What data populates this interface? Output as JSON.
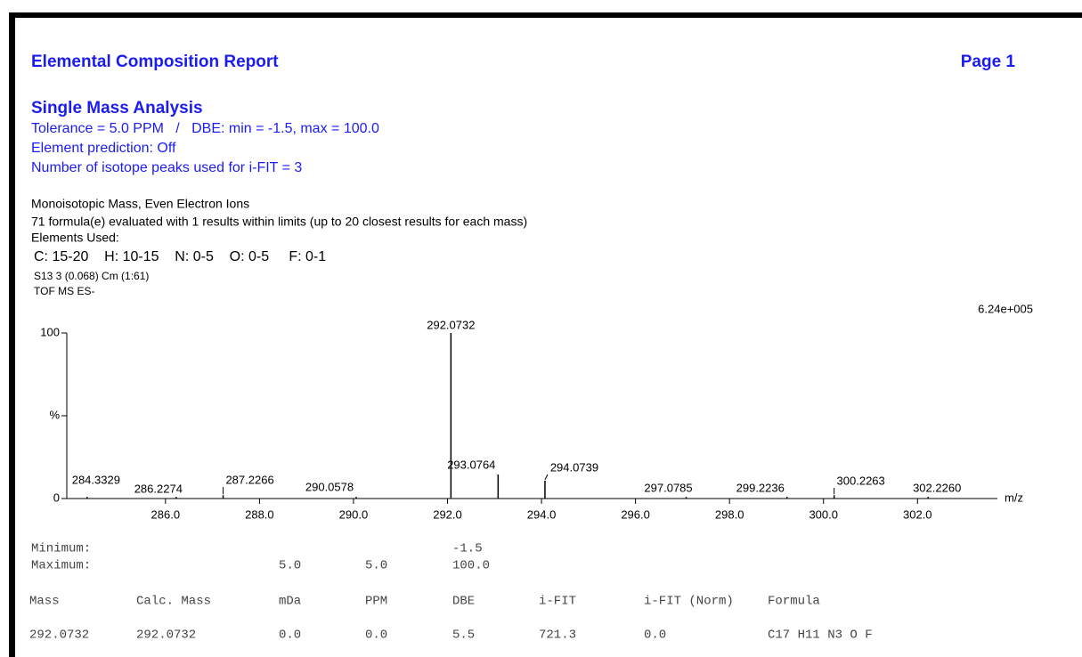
{
  "header": {
    "title": "Elemental Composition Report",
    "page": "Page 1"
  },
  "analysis": {
    "title": "Single Mass Analysis",
    "lines": [
      "Tolerance = 5.0 PPM   /   DBE: min = -1.5, max = 100.0",
      "Element prediction: Off",
      "Number of isotope peaks used for i-FIT = 3"
    ]
  },
  "info": {
    "lines": [
      "Monoisotopic Mass, Even Electron Ions",
      "71 formula(e) evaluated with 1 results within limits (up to 20 closest results for each mass)",
      "Elements Used:"
    ],
    "elements": "C: 15-20    H: 10-15    N: 0-5    O: 0-5     F: 0-1",
    "sample": "S13 3 (0.068) Cm (1:61)",
    "mode": "TOF MS ES-"
  },
  "chart_data": {
    "type": "stem",
    "annotation": "6.24e+005",
    "x_label": "m/z",
    "x": [
      284.3329,
      286.2274,
      287.2266,
      290.0578,
      292.0732,
      293.0764,
      294.0739,
      297.0785,
      299.2236,
      300.2263,
      302.226
    ],
    "peak_labels": [
      "284.3329",
      "286.2274",
      "287.2266",
      "290.0578",
      "292.0732",
      "293.0764",
      "294.0739",
      "297.0785",
      "299.2236",
      "300.2263",
      "302.2260"
    ],
    "values": [
      1,
      1,
      2,
      1,
      100,
      14.5,
      10.8,
      1,
      1,
      2,
      1
    ],
    "color": "#000000",
    "xlim": [
      283.9,
      303.7
    ],
    "xticks": [
      {
        "value": 286,
        "label": "286.0"
      },
      {
        "value": 288,
        "label": "288.0"
      },
      {
        "value": 290,
        "label": "290.0"
      },
      {
        "value": 292,
        "label": "292.0"
      },
      {
        "value": 294,
        "label": "294.0"
      },
      {
        "value": 296,
        "label": "296.0"
      },
      {
        "value": 298,
        "label": "298.0"
      },
      {
        "value": 300,
        "label": "300.0"
      },
      {
        "value": 302,
        "label": "302.0"
      }
    ],
    "ylim": [
      0,
      100
    ],
    "yticks": [
      0,
      {
        "value": 50,
        "label": "%"
      },
      100
    ]
  },
  "limits": {
    "minimum_label": "Minimum:",
    "minimum_dbe": "-1.5",
    "maximum_label": "Maximum:",
    "maximum_mda": "5.0",
    "maximum_ppm": "5.0",
    "maximum_dbe": "100.0"
  },
  "table": {
    "columns": [
      "Mass",
      "Calc. Mass",
      "mDa",
      "PPM",
      "DBE",
      "i-FIT",
      "i-FIT (Norm)",
      "Formula"
    ],
    "rows": [
      [
        "292.0732",
        "292.0732",
        "0.0",
        "0.0",
        "5.5",
        "721.3",
        "0.0",
        "C17  H11  N3  O  F"
      ]
    ]
  }
}
